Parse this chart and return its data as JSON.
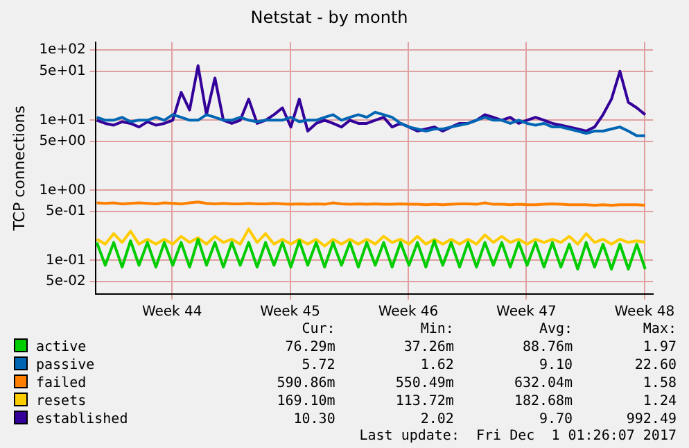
{
  "chart_data": {
    "type": "line",
    "title": "Netstat - by month",
    "ylabel": "TCP connections",
    "log": "y",
    "grid": true,
    "legend": "bottom",
    "marker": "none",
    "ylim": [
      0.033,
      130
    ],
    "yticks": [
      {
        "value": 100,
        "label": "1e+02"
      },
      {
        "value": 50,
        "label": "5e+01"
      },
      {
        "value": 10,
        "label": "1e+01"
      },
      {
        "value": 5,
        "label": "5e+00"
      },
      {
        "value": 1,
        "label": "1e+00"
      },
      {
        "value": 0.5,
        "label": "5e-01"
      },
      {
        "value": 0.1,
        "label": "1e-01"
      },
      {
        "value": 0.05,
        "label": "5e-02"
      }
    ],
    "xlim": [
      "2017-10-29T02:00",
      "2017-12-01T03:00"
    ],
    "xticks": [
      {
        "value": "2017-11-02T15:00",
        "label": "Week 44"
      },
      {
        "value": "2017-11-09T15:00",
        "label": "Week 45"
      },
      {
        "value": "2017-11-16T15:00",
        "label": "Week 46"
      },
      {
        "value": "2017-11-23T15:00",
        "label": "Week 47"
      },
      {
        "value": "2017-11-30T15:00",
        "label": "Week 48"
      }
    ],
    "x": [
      "2017-10-29T04:00",
      "2017-10-29T16:00",
      "2017-10-30T04:00",
      "2017-10-30T16:00",
      "2017-10-31T04:00",
      "2017-10-31T16:00",
      "2017-11-01T04:00",
      "2017-11-01T16:00",
      "2017-11-02T04:00",
      "2017-11-02T16:00",
      "2017-11-03T04:00",
      "2017-11-03T16:00",
      "2017-11-04T04:00",
      "2017-11-04T16:00",
      "2017-11-05T04:00",
      "2017-11-05T16:00",
      "2017-11-06T04:00",
      "2017-11-06T16:00",
      "2017-11-07T04:00",
      "2017-11-07T16:00",
      "2017-11-08T04:00",
      "2017-11-08T16:00",
      "2017-11-09T04:00",
      "2017-11-09T16:00",
      "2017-11-10T04:00",
      "2017-11-10T16:00",
      "2017-11-11T04:00",
      "2017-11-11T16:00",
      "2017-11-12T04:00",
      "2017-11-12T16:00",
      "2017-11-13T04:00",
      "2017-11-13T16:00",
      "2017-11-14T04:00",
      "2017-11-14T16:00",
      "2017-11-15T04:00",
      "2017-11-15T16:00",
      "2017-11-16T04:00",
      "2017-11-16T16:00",
      "2017-11-17T04:00",
      "2017-11-17T16:00",
      "2017-11-18T04:00",
      "2017-11-18T16:00",
      "2017-11-19T04:00",
      "2017-11-19T16:00",
      "2017-11-20T04:00",
      "2017-11-20T16:00",
      "2017-11-21T04:00",
      "2017-11-21T16:00",
      "2017-11-22T04:00",
      "2017-11-22T16:00",
      "2017-11-23T04:00",
      "2017-11-23T16:00",
      "2017-11-24T04:00",
      "2017-11-24T16:00",
      "2017-11-25T04:00",
      "2017-11-25T16:00",
      "2017-11-26T04:00",
      "2017-11-26T16:00",
      "2017-11-27T04:00",
      "2017-11-27T16:00",
      "2017-11-28T04:00",
      "2017-11-28T16:00",
      "2017-11-29T04:00",
      "2017-11-29T16:00",
      "2017-11-30T04:00",
      "2017-11-30T16:00"
    ],
    "series": [
      {
        "name": "active",
        "color": "#00cc00",
        "values": [
          0.18,
          0.085,
          0.18,
          0.08,
          0.19,
          0.085,
          0.18,
          0.08,
          0.18,
          0.085,
          0.18,
          0.08,
          0.2,
          0.085,
          0.18,
          0.08,
          0.18,
          0.085,
          0.18,
          0.08,
          0.18,
          0.085,
          0.18,
          0.08,
          0.19,
          0.085,
          0.18,
          0.08,
          0.18,
          0.085,
          0.18,
          0.08,
          0.18,
          0.085,
          0.18,
          0.08,
          0.18,
          0.085,
          0.18,
          0.08,
          0.19,
          0.085,
          0.18,
          0.08,
          0.18,
          0.08,
          0.18,
          0.085,
          0.18,
          0.08,
          0.18,
          0.085,
          0.18,
          0.08,
          0.18,
          0.08,
          0.17,
          0.075,
          0.18,
          0.08,
          0.17,
          0.075,
          0.17,
          0.075,
          0.17,
          0.075
        ]
      },
      {
        "name": "passive",
        "color": "#0066b3",
        "values": [
          11,
          10,
          10,
          11,
          9.5,
          10,
          10,
          11,
          10,
          12,
          11,
          10,
          10,
          12,
          11,
          10,
          10,
          11,
          10,
          9.5,
          10,
          10,
          10,
          11,
          9.5,
          10,
          10,
          11,
          12,
          10,
          11,
          12,
          11,
          13,
          12,
          11,
          9,
          8,
          7.5,
          7,
          7.5,
          7.5,
          8,
          8.5,
          9,
          10,
          11,
          10,
          10,
          9,
          10,
          9,
          8.5,
          9,
          8,
          8,
          7.5,
          7,
          6.5,
          7,
          7,
          7.5,
          8,
          7,
          6,
          6
        ]
      },
      {
        "name": "failed",
        "color": "#ff8000",
        "values": [
          0.66,
          0.65,
          0.66,
          0.64,
          0.65,
          0.66,
          0.65,
          0.64,
          0.66,
          0.65,
          0.64,
          0.66,
          0.68,
          0.65,
          0.64,
          0.65,
          0.64,
          0.64,
          0.65,
          0.64,
          0.64,
          0.65,
          0.64,
          0.63,
          0.64,
          0.63,
          0.64,
          0.63,
          0.66,
          0.64,
          0.63,
          0.64,
          0.63,
          0.64,
          0.63,
          0.63,
          0.64,
          0.63,
          0.63,
          0.62,
          0.63,
          0.62,
          0.63,
          0.64,
          0.64,
          0.63,
          0.66,
          0.63,
          0.63,
          0.62,
          0.63,
          0.62,
          0.62,
          0.63,
          0.64,
          0.63,
          0.62,
          0.62,
          0.62,
          0.61,
          0.62,
          0.61,
          0.62,
          0.62,
          0.62,
          0.61
        ]
      },
      {
        "name": "resets",
        "color": "#ffcc00",
        "values": [
          0.2,
          0.17,
          0.24,
          0.18,
          0.26,
          0.17,
          0.2,
          0.17,
          0.2,
          0.17,
          0.22,
          0.18,
          0.21,
          0.17,
          0.22,
          0.18,
          0.2,
          0.17,
          0.28,
          0.18,
          0.24,
          0.17,
          0.2,
          0.17,
          0.2,
          0.17,
          0.2,
          0.16,
          0.2,
          0.17,
          0.2,
          0.17,
          0.2,
          0.17,
          0.22,
          0.18,
          0.2,
          0.17,
          0.22,
          0.17,
          0.2,
          0.17,
          0.2,
          0.17,
          0.2,
          0.17,
          0.23,
          0.18,
          0.22,
          0.18,
          0.2,
          0.17,
          0.2,
          0.18,
          0.2,
          0.18,
          0.22,
          0.17,
          0.24,
          0.18,
          0.2,
          0.17,
          0.2,
          0.18,
          0.19,
          0.18
        ]
      },
      {
        "name": "established",
        "color": "#330099",
        "values": [
          10,
          9,
          8.5,
          9.5,
          9,
          8,
          9.5,
          8.5,
          9,
          10,
          25,
          14,
          60,
          12,
          40,
          10,
          9,
          10,
          20,
          9,
          10,
          12,
          15,
          8,
          20,
          7,
          9,
          10,
          9,
          8,
          10,
          9,
          9,
          10,
          11,
          8,
          9,
          8,
          7,
          7.5,
          8,
          7,
          8,
          9,
          9,
          10,
          12,
          11,
          10,
          11,
          9,
          10,
          11,
          10,
          9,
          8.5,
          8,
          7.5,
          7,
          8,
          12,
          20,
          50,
          18,
          15,
          12
        ]
      }
    ],
    "annotations": [
      "Cur:",
      "Min:",
      "Avg:",
      "Max:",
      "76.29m",
      "37.26m",
      "88.76m",
      "1.97",
      "5.72",
      "1.62",
      "9.10",
      "22.60",
      "590.86m",
      "550.49m",
      "632.04m",
      "1.58",
      "169.10m",
      "113.72m",
      "182.68m",
      "1.24",
      "10.30",
      "2.02",
      "9.70",
      "992.49",
      "Last update:  Fri Dec  1 01:26:07 2017"
    ]
  }
}
